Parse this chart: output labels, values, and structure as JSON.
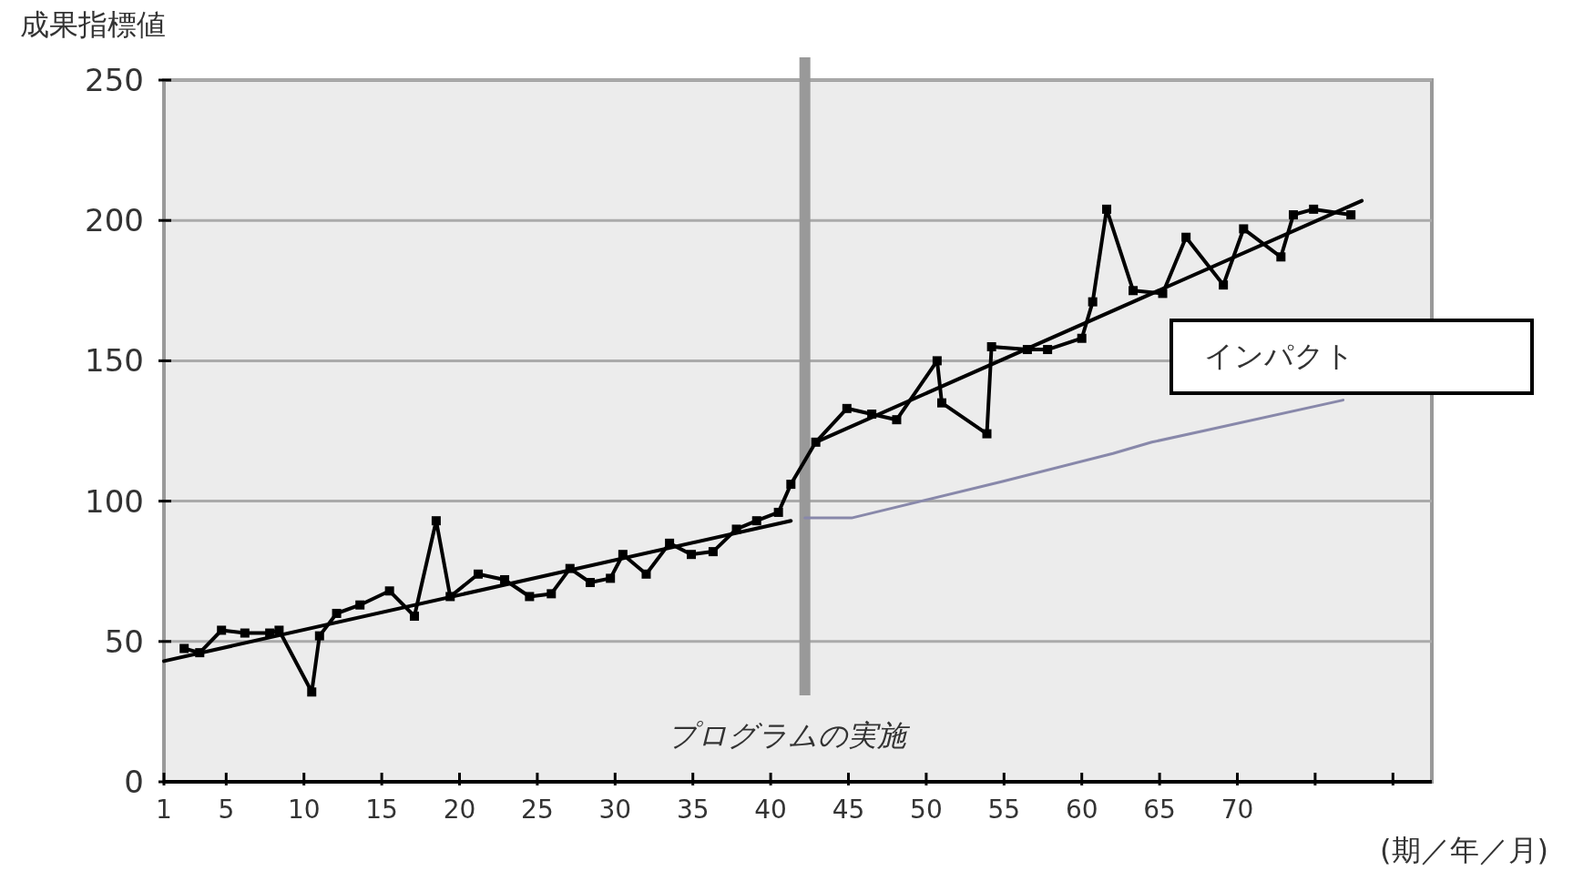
{
  "chart_data": {
    "type": "line",
    "ylabel": "成果指標値",
    "xlabel": "(期／年／月)",
    "xlim": [
      1,
      82.5
    ],
    "ylim": [
      0,
      250
    ],
    "xticks": [
      1,
      5,
      10,
      15,
      20,
      25,
      30,
      35,
      40,
      45,
      50,
      55,
      60,
      65,
      70,
      {
        "value": 75,
        "label": null
      },
      {
        "value": 80,
        "label": null
      }
    ],
    "yticks": [
      0,
      50,
      100,
      150,
      200,
      250
    ],
    "grid": "y",
    "ref_lines": [
      {
        "axis": "x",
        "value": 42.2,
        "label": "プログラムの実施",
        "color": "#999999"
      }
    ],
    "annotations": [
      "インパクト"
    ],
    "series": [
      {
        "color": "#000000",
        "marker": "square",
        "x": [
          2.3,
          3.3,
          4.7,
          6.2,
          7.8,
          8.4,
          10.5,
          11,
          12.1,
          13.6,
          15.5,
          17.1,
          18.5,
          19.4,
          21.2,
          22.9,
          24.5,
          25.9,
          27.1,
          28.4,
          29.7,
          30.5,
          32,
          33.5,
          34.9,
          36.3,
          37.8,
          39.1,
          40.5,
          41.3,
          42.9,
          44.9,
          46.5,
          48.1,
          50.7,
          51,
          53.9,
          54.2,
          56.5,
          57.8,
          60,
          60.7,
          61.6,
          63.3,
          65.2,
          66.7,
          69.1,
          70.4,
          72.8,
          73.6,
          74.9,
          77.3
        ],
        "values": [
          47.5,
          46,
          54,
          53,
          53,
          54,
          32,
          52,
          60,
          63,
          68,
          59,
          93,
          66,
          74,
          72,
          66,
          67,
          76,
          71,
          72.5,
          81,
          74,
          85,
          81,
          82,
          90,
          93,
          96,
          106,
          121,
          133,
          131,
          129,
          150,
          135,
          124,
          155,
          154,
          154,
          158,
          171,
          204,
          175,
          174,
          194,
          177,
          197,
          187,
          202,
          204,
          202
        ]
      },
      {
        "color": "#000000",
        "marker": "none",
        "x": [
          1,
          41.3
        ],
        "values": [
          43,
          93
        ]
      },
      {
        "color": "#000000",
        "marker": "none",
        "x": [
          42.9,
          78
        ],
        "values": [
          121,
          207
        ]
      },
      {
        "color": "#8888aa",
        "marker": "none",
        "x": [
          42.2,
          45.2,
          54.9,
          62,
          64.5,
          67.8,
          76.8
        ],
        "values": [
          94,
          94,
          107,
          117,
          121,
          125,
          136
        ]
      }
    ]
  }
}
